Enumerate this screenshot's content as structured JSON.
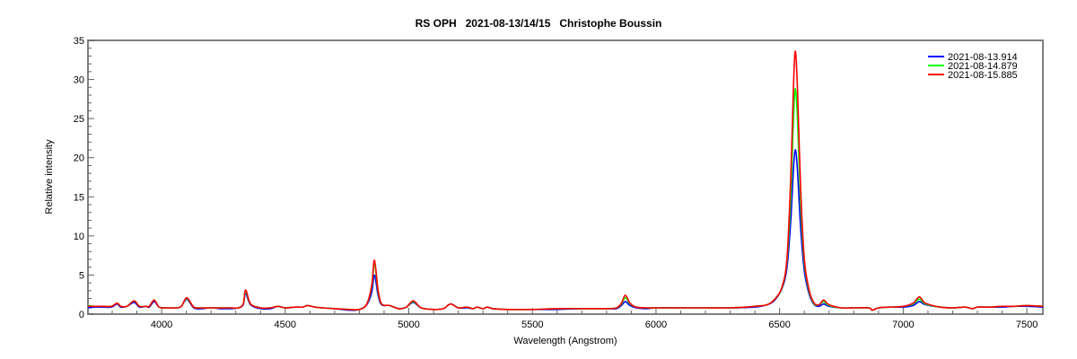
{
  "chart_data": {
    "type": "line",
    "title": "RS OPH   2021-08-13/14/15   Christophe Boussin",
    "xlabel": "Wavelength (Angstrom)",
    "ylabel": "Relative intensity",
    "xlim": [
      3702,
      7565
    ],
    "ylim": [
      0,
      35
    ],
    "xticks": [
      4000,
      4500,
      5000,
      5500,
      6000,
      6500,
      7000,
      7500
    ],
    "yticks": [
      0,
      5,
      10,
      15,
      20,
      25,
      30,
      35
    ],
    "x_minor_step": 100,
    "y_minor_step": 1,
    "grid": false,
    "legend_position": "upper right",
    "x": [
      3702,
      3730,
      3760,
      3797,
      3820,
      3835,
      3860,
      3889,
      3910,
      3935,
      3950,
      3970,
      3990,
      4020,
      4060,
      4080,
      4102,
      4130,
      4160,
      4200,
      4240,
      4280,
      4310,
      4330,
      4340,
      4360,
      4400,
      4440,
      4471,
      4500,
      4540,
      4570,
      4590,
      4620,
      4650,
      4700,
      4760,
      4800,
      4830,
      4850,
      4861,
      4875,
      4890,
      4922,
      4960,
      4990,
      5018,
      5050,
      5100,
      5140,
      5169,
      5200,
      5234,
      5260,
      5276,
      5300,
      5317,
      5340,
      5400,
      5500,
      5600,
      5700,
      5800,
      5840,
      5860,
      5876,
      5895,
      5920,
      5960,
      6000,
      6100,
      6200,
      6300,
      6400,
      6450,
      6480,
      6510,
      6530,
      6545,
      6555,
      6563,
      6572,
      6585,
      6600,
      6620,
      6640,
      6660,
      6678,
      6700,
      6750,
      6800,
      6860,
      6875,
      6900,
      6950,
      7000,
      7040,
      7065,
      7090,
      7150,
      7200,
      7250,
      7281,
      7300,
      7350,
      7400,
      7450,
      7500,
      7565
    ],
    "series": [
      {
        "name": "2021-08-13.914",
        "color": "#0000ff",
        "values": [
          0.8,
          0.9,
          0.9,
          0.9,
          1.3,
          0.9,
          1.0,
          1.5,
          0.9,
          1.0,
          0.9,
          1.6,
          0.9,
          0.8,
          0.8,
          1.0,
          1.9,
          0.8,
          0.7,
          0.8,
          0.7,
          0.7,
          0.8,
          1.2,
          2.6,
          1.2,
          0.7,
          0.7,
          1.0,
          0.8,
          0.9,
          0.9,
          1.1,
          0.9,
          0.8,
          0.7,
          0.5,
          0.6,
          1.2,
          2.8,
          5.0,
          2.5,
          1.2,
          1.1,
          0.7,
          0.9,
          1.5,
          0.8,
          0.6,
          0.7,
          1.3,
          0.8,
          0.8,
          0.7,
          0.9,
          0.7,
          0.9,
          0.7,
          0.6,
          0.6,
          0.6,
          0.7,
          0.7,
          0.7,
          1.1,
          1.6,
          1.1,
          0.8,
          0.7,
          0.8,
          0.8,
          0.8,
          0.8,
          0.9,
          1.2,
          1.8,
          3.3,
          6.0,
          12.0,
          18.0,
          21.0,
          18.5,
          11.0,
          5.5,
          2.5,
          1.2,
          1.0,
          1.3,
          1.0,
          0.8,
          0.8,
          0.8,
          0.5,
          0.8,
          0.9,
          0.9,
          1.1,
          1.6,
          1.2,
          0.9,
          0.8,
          0.9,
          0.7,
          0.9,
          0.9,
          0.9,
          1.0,
          1.0,
          0.9
        ]
      },
      {
        "name": "2021-08-14.879",
        "color": "#00ff00",
        "values": [
          1.1,
          1.0,
          1.0,
          1.0,
          1.4,
          1.0,
          1.0,
          1.7,
          1.0,
          1.0,
          1.0,
          1.8,
          0.9,
          0.8,
          0.8,
          1.0,
          2.0,
          0.9,
          0.8,
          0.8,
          0.8,
          0.8,
          0.8,
          1.3,
          2.9,
          1.3,
          0.8,
          0.8,
          1.0,
          0.8,
          0.9,
          0.9,
          1.1,
          0.9,
          0.8,
          0.7,
          0.6,
          0.6,
          1.3,
          3.5,
          6.5,
          3.0,
          1.3,
          1.1,
          0.7,
          0.9,
          1.6,
          0.8,
          0.6,
          0.7,
          1.3,
          0.8,
          0.9,
          0.7,
          0.9,
          0.7,
          0.9,
          0.7,
          0.6,
          0.6,
          0.7,
          0.7,
          0.7,
          0.8,
          1.3,
          2.1,
          1.3,
          0.9,
          0.8,
          0.8,
          0.8,
          0.8,
          0.8,
          1.0,
          1.2,
          1.9,
          3.4,
          6.8,
          15.0,
          24.0,
          28.8,
          25.0,
          14.0,
          6.5,
          2.8,
          1.3,
          1.2,
          1.6,
          1.1,
          0.8,
          0.8,
          0.8,
          0.5,
          0.8,
          0.9,
          1.0,
          1.3,
          1.9,
          1.3,
          0.9,
          0.8,
          0.9,
          0.7,
          0.9,
          0.9,
          1.0,
          1.0,
          1.1,
          1.0
        ]
      },
      {
        "name": "2021-08-15.885",
        "color": "#ff0000",
        "values": [
          1.0,
          1.0,
          1.0,
          1.0,
          1.4,
          1.0,
          1.0,
          1.7,
          1.0,
          1.0,
          1.0,
          1.8,
          0.9,
          0.8,
          0.8,
          1.0,
          2.1,
          0.9,
          0.8,
          0.8,
          0.8,
          0.8,
          0.8,
          1.3,
          3.1,
          1.3,
          0.8,
          0.8,
          1.0,
          0.8,
          0.9,
          0.9,
          1.1,
          0.9,
          0.8,
          0.7,
          0.6,
          0.6,
          1.3,
          3.7,
          6.9,
          3.2,
          1.3,
          1.1,
          0.7,
          0.9,
          1.7,
          0.8,
          0.6,
          0.7,
          1.3,
          0.8,
          0.9,
          0.7,
          0.9,
          0.7,
          0.9,
          0.7,
          0.6,
          0.6,
          0.7,
          0.7,
          0.7,
          0.8,
          1.4,
          2.4,
          1.4,
          0.9,
          0.8,
          0.8,
          0.8,
          0.8,
          0.8,
          1.0,
          1.2,
          1.9,
          3.5,
          7.2,
          17.5,
          28.0,
          33.6,
          29.0,
          16.0,
          7.0,
          3.0,
          1.4,
          1.2,
          1.8,
          1.2,
          0.8,
          0.8,
          0.8,
          0.5,
          0.8,
          0.9,
          1.0,
          1.4,
          2.2,
          1.4,
          0.9,
          0.8,
          0.9,
          0.7,
          0.9,
          0.9,
          1.0,
          1.0,
          1.1,
          1.0
        ]
      }
    ]
  },
  "legend": {
    "items": [
      {
        "label": "2021-08-13.914",
        "color": "#0000ff"
      },
      {
        "label": "2021-08-14.879",
        "color": "#00ff00"
      },
      {
        "label": "2021-08-15.885",
        "color": "#ff0000"
      }
    ]
  },
  "colors": {
    "frame": "#808080",
    "axis_text": "#000000"
  }
}
